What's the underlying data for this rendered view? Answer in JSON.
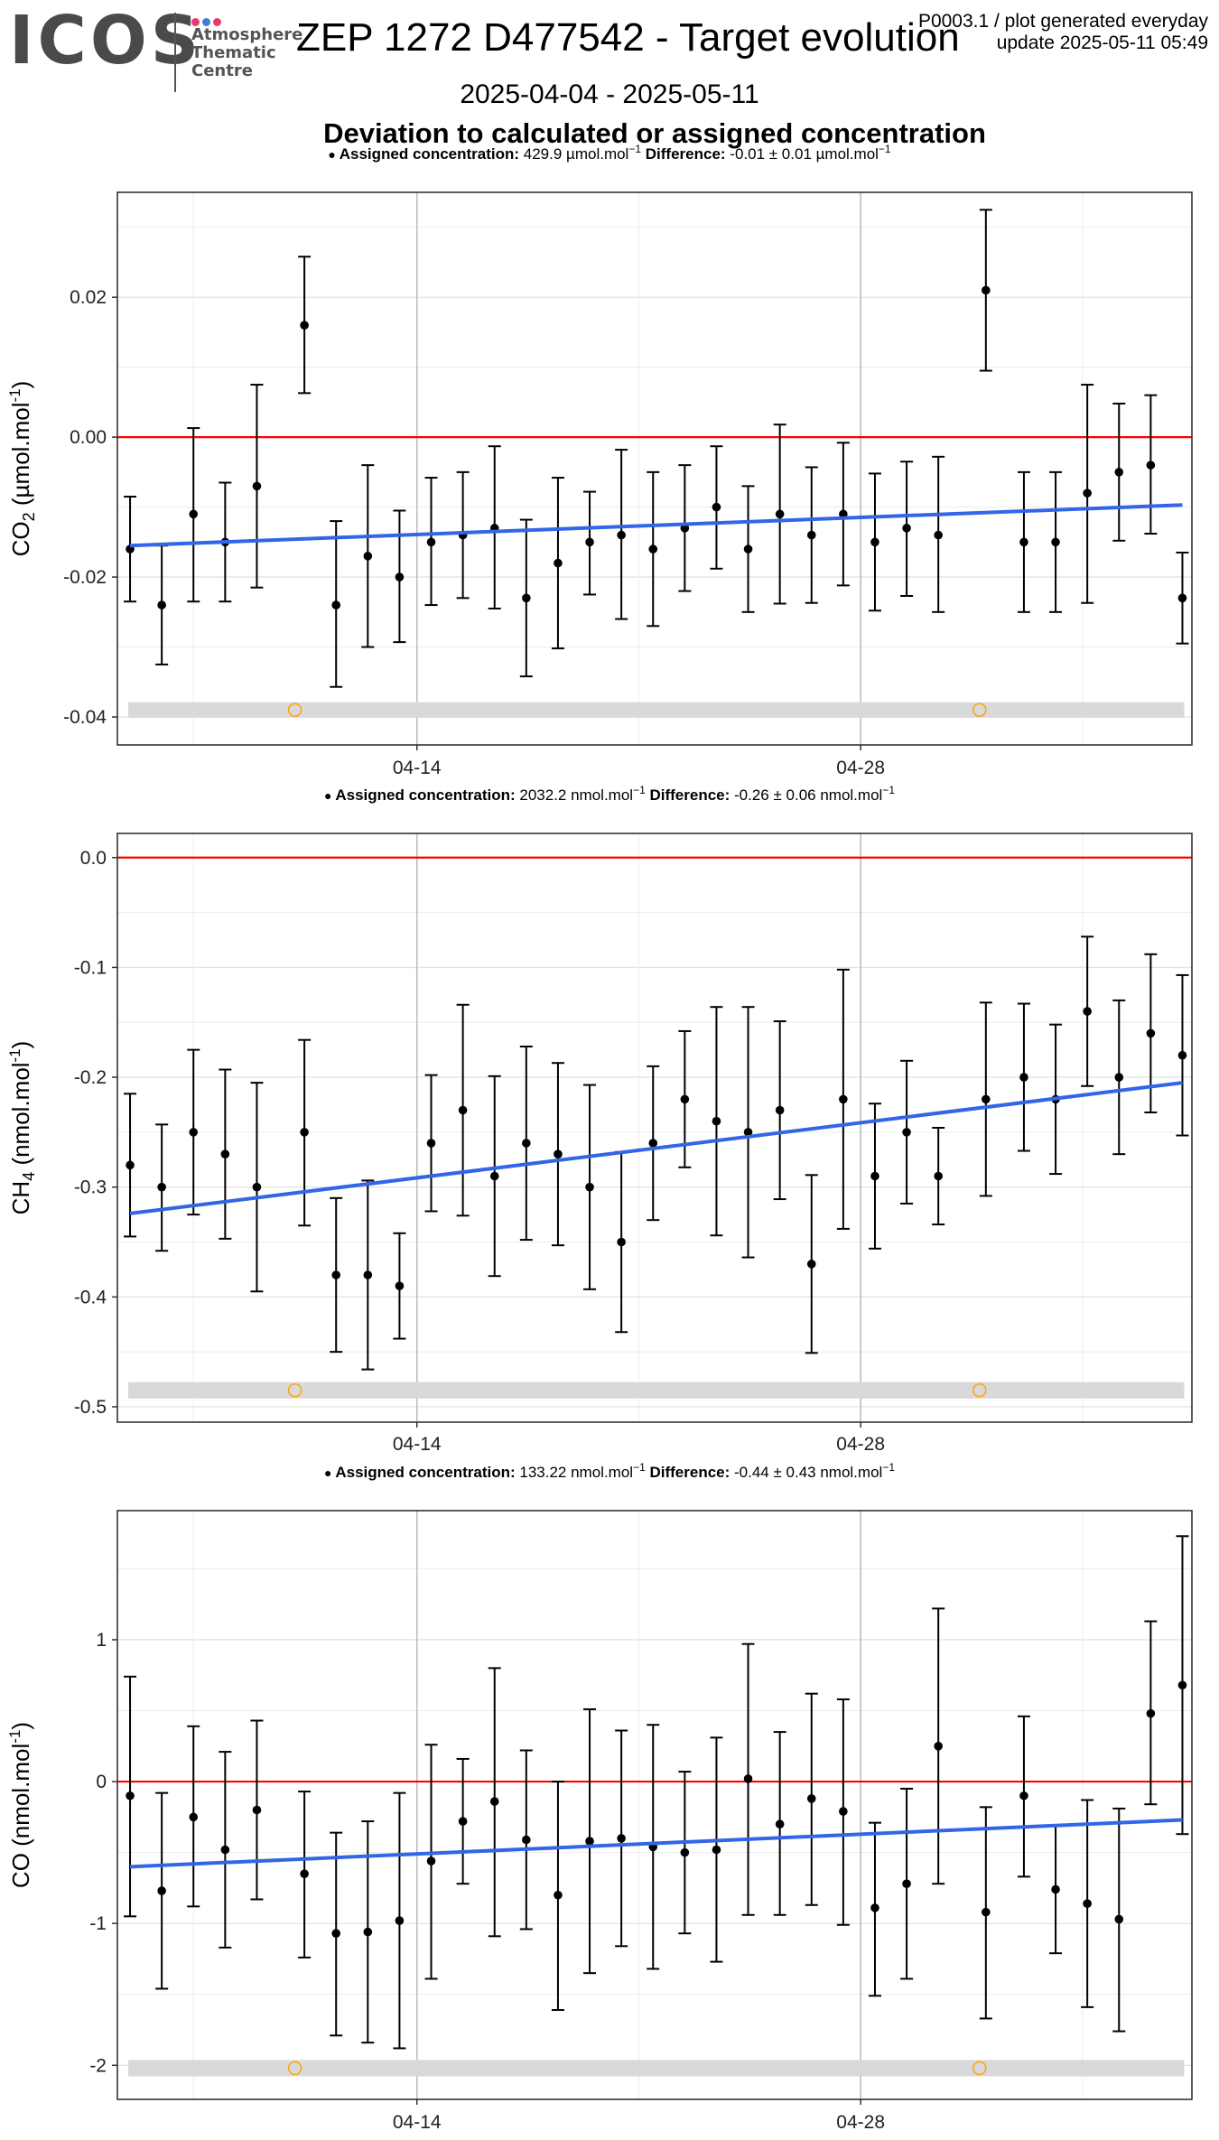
{
  "header": {
    "logo": {
      "wordmark": "ICOS",
      "line1": "Atmosphere",
      "line2": "Thematic",
      "line3": "Centre",
      "dot_colors": [
        "#e63a70",
        "#3a7fd5",
        "#e63a70"
      ]
    },
    "title": "ZEP 1272 D477542 - Target evolution",
    "meta_line1": "P0003.1 / plot generated everyday",
    "meta_line2": "update  2025-05-11 05:49",
    "date_range": "2025-04-04 - 2025-05-11",
    "subtitle": "Deviation to calculated or assigned concentration"
  },
  "colors": {
    "points": "#000000",
    "zero_line": "#ff0000",
    "trend": "#3366e6",
    "flag_band": "#d9d9d9",
    "flag_marker": "#ffa500",
    "grid_major": "#bdbdbd",
    "grid_minor": "#ececec"
  },
  "chart_data": [
    {
      "type": "scatter",
      "ylabel_species": "CO",
      "ylabel_sub": "2",
      "ylabel_unit": "(µmol.mol",
      "ylabel_exp": "-1",
      "caption": {
        "assigned_label": "Assigned concentration:",
        "assigned_value": "429.9 µmol.mol",
        "diff_label": "Difference:",
        "diff_value": "-0.01 ± 0.01 µmol.mol",
        "exp": "−1"
      },
      "x_ticks": [
        "04-14",
        "04-28"
      ],
      "y_ticks": [
        0.02,
        0.0,
        -0.02,
        -0.04
      ],
      "y_tick_labels": [
        "0.02",
        "0.00",
        "-0.02",
        "-0.04"
      ],
      "ylim": [
        -0.044,
        0.035
      ],
      "points": [
        {
          "x": 0,
          "y": -0.016,
          "lo": -0.0235,
          "hi": -0.0085
        },
        {
          "x": 1,
          "y": -0.024,
          "lo": -0.0325,
          "hi": -0.0155
        },
        {
          "x": 2,
          "y": -0.011,
          "lo": -0.0235,
          "hi": 0.0013
        },
        {
          "x": 3,
          "y": -0.015,
          "lo": -0.0235,
          "hi": -0.0065
        },
        {
          "x": 4,
          "y": -0.007,
          "lo": -0.0215,
          "hi": 0.0075
        },
        {
          "x": 5.5,
          "y": 0.016,
          "lo": 0.0063,
          "hi": 0.0258
        },
        {
          "x": 6.5,
          "y": -0.024,
          "lo": -0.0357,
          "hi": -0.012
        },
        {
          "x": 7.5,
          "y": -0.017,
          "lo": -0.03,
          "hi": -0.004
        },
        {
          "x": 8.5,
          "y": -0.02,
          "lo": -0.0293,
          "hi": -0.0105
        },
        {
          "x": 9.5,
          "y": -0.015,
          "lo": -0.024,
          "hi": -0.0058
        },
        {
          "x": 10.5,
          "y": -0.014,
          "lo": -0.023,
          "hi": -0.005
        },
        {
          "x": 11.5,
          "y": -0.013,
          "lo": -0.0245,
          "hi": -0.0013
        },
        {
          "x": 12.5,
          "y": -0.023,
          "lo": -0.0342,
          "hi": -0.0118
        },
        {
          "x": 13.5,
          "y": -0.018,
          "lo": -0.0302,
          "hi": -0.0058
        },
        {
          "x": 14.5,
          "y": -0.015,
          "lo": -0.0225,
          "hi": -0.0078
        },
        {
          "x": 15.5,
          "y": -0.014,
          "lo": -0.026,
          "hi": -0.0018
        },
        {
          "x": 16.5,
          "y": -0.016,
          "lo": -0.027,
          "hi": -0.005
        },
        {
          "x": 17.5,
          "y": -0.013,
          "lo": -0.022,
          "hi": -0.004
        },
        {
          "x": 18.5,
          "y": -0.01,
          "lo": -0.0188,
          "hi": -0.0013
        },
        {
          "x": 19.5,
          "y": -0.016,
          "lo": -0.025,
          "hi": -0.007
        },
        {
          "x": 20.5,
          "y": -0.011,
          "lo": -0.0238,
          "hi": 0.0018
        },
        {
          "x": 21.5,
          "y": -0.014,
          "lo": -0.0237,
          "hi": -0.0043
        },
        {
          "x": 22.5,
          "y": -0.011,
          "lo": -0.0212,
          "hi": -0.0008
        },
        {
          "x": 23.5,
          "y": -0.015,
          "lo": -0.0248,
          "hi": -0.0052
        },
        {
          "x": 24.5,
          "y": -0.013,
          "lo": -0.0227,
          "hi": -0.0035
        },
        {
          "x": 25.5,
          "y": -0.014,
          "lo": -0.025,
          "hi": -0.0028
        },
        {
          "x": 27,
          "y": 0.021,
          "lo": 0.0095,
          "hi": 0.0325
        },
        {
          "x": 28.2,
          "y": -0.015,
          "lo": -0.025,
          "hi": -0.005
        },
        {
          "x": 29.2,
          "y": -0.015,
          "lo": -0.025,
          "hi": -0.005
        },
        {
          "x": 30.2,
          "y": -0.008,
          "lo": -0.0237,
          "hi": 0.0075
        },
        {
          "x": 31.2,
          "y": -0.005,
          "lo": -0.0148,
          "hi": 0.0048
        },
        {
          "x": 32.2,
          "y": -0.004,
          "lo": -0.0138,
          "hi": 0.006
        },
        {
          "x": 33.2,
          "y": -0.023,
          "lo": -0.0295,
          "hi": -0.0165
        }
      ],
      "trend": {
        "y_start": -0.0155,
        "y_end": -0.0097
      },
      "flag_y": -0.039,
      "flag_markers_x": [
        5.2,
        26.8
      ]
    },
    {
      "type": "scatter",
      "ylabel_species": "CH",
      "ylabel_sub": "4",
      "ylabel_unit": "(nmol.mol",
      "ylabel_exp": "-1",
      "caption": {
        "assigned_label": "Assigned concentration:",
        "assigned_value": "2032.2 nmol.mol",
        "diff_label": "Difference:",
        "diff_value": "-0.26 ± 0.06 nmol.mol",
        "exp": "−1"
      },
      "x_ticks": [
        "04-14",
        "04-28"
      ],
      "y_ticks": [
        0.0,
        -0.1,
        -0.2,
        -0.3,
        -0.4,
        -0.5
      ],
      "y_tick_labels": [
        "0.0",
        "-0.1",
        "-0.2",
        "-0.3",
        "-0.4",
        "-0.5"
      ],
      "ylim": [
        -0.514,
        0.022
      ],
      "points": [
        {
          "x": 0,
          "y": -0.28,
          "lo": -0.345,
          "hi": -0.215
        },
        {
          "x": 1,
          "y": -0.3,
          "lo": -0.358,
          "hi": -0.243
        },
        {
          "x": 2,
          "y": -0.25,
          "lo": -0.325,
          "hi": -0.175
        },
        {
          "x": 3,
          "y": -0.27,
          "lo": -0.347,
          "hi": -0.193
        },
        {
          "x": 4,
          "y": -0.3,
          "lo": -0.395,
          "hi": -0.205
        },
        {
          "x": 5.5,
          "y": -0.25,
          "lo": -0.335,
          "hi": -0.166
        },
        {
          "x": 6.5,
          "y": -0.38,
          "lo": -0.45,
          "hi": -0.31
        },
        {
          "x": 7.5,
          "y": -0.38,
          "lo": -0.466,
          "hi": -0.294
        },
        {
          "x": 8.5,
          "y": -0.39,
          "lo": -0.438,
          "hi": -0.342
        },
        {
          "x": 9.5,
          "y": -0.26,
          "lo": -0.322,
          "hi": -0.198
        },
        {
          "x": 10.5,
          "y": -0.23,
          "lo": -0.326,
          "hi": -0.134
        },
        {
          "x": 11.5,
          "y": -0.29,
          "lo": -0.381,
          "hi": -0.199
        },
        {
          "x": 12.5,
          "y": -0.26,
          "lo": -0.348,
          "hi": -0.172
        },
        {
          "x": 13.5,
          "y": -0.27,
          "lo": -0.353,
          "hi": -0.187
        },
        {
          "x": 14.5,
          "y": -0.3,
          "lo": -0.393,
          "hi": -0.207
        },
        {
          "x": 15.5,
          "y": -0.35,
          "lo": -0.432,
          "hi": -0.268
        },
        {
          "x": 16.5,
          "y": -0.26,
          "lo": -0.33,
          "hi": -0.19
        },
        {
          "x": 17.5,
          "y": -0.22,
          "lo": -0.282,
          "hi": -0.158
        },
        {
          "x": 18.5,
          "y": -0.24,
          "lo": -0.344,
          "hi": -0.136
        },
        {
          "x": 19.5,
          "y": -0.25,
          "lo": -0.364,
          "hi": -0.136
        },
        {
          "x": 20.5,
          "y": -0.23,
          "lo": -0.311,
          "hi": -0.149
        },
        {
          "x": 21.5,
          "y": -0.37,
          "lo": -0.451,
          "hi": -0.289
        },
        {
          "x": 22.5,
          "y": -0.22,
          "lo": -0.338,
          "hi": -0.102
        },
        {
          "x": 23.5,
          "y": -0.29,
          "lo": -0.356,
          "hi": -0.224
        },
        {
          "x": 24.5,
          "y": -0.25,
          "lo": -0.315,
          "hi": -0.185
        },
        {
          "x": 25.5,
          "y": -0.29,
          "lo": -0.334,
          "hi": -0.246
        },
        {
          "x": 27,
          "y": -0.22,
          "lo": -0.308,
          "hi": -0.132
        },
        {
          "x": 28.2,
          "y": -0.2,
          "lo": -0.267,
          "hi": -0.133
        },
        {
          "x": 29.2,
          "y": -0.22,
          "lo": -0.288,
          "hi": -0.152
        },
        {
          "x": 30.2,
          "y": -0.14,
          "lo": -0.208,
          "hi": -0.072
        },
        {
          "x": 31.2,
          "y": -0.2,
          "lo": -0.27,
          "hi": -0.13
        },
        {
          "x": 32.2,
          "y": -0.16,
          "lo": -0.232,
          "hi": -0.088
        },
        {
          "x": 33.2,
          "y": -0.18,
          "lo": -0.253,
          "hi": -0.107
        }
      ],
      "trend": {
        "y_start": -0.324,
        "y_end": -0.205
      },
      "flag_y": -0.485,
      "flag_markers_x": [
        5.2,
        26.8
      ]
    },
    {
      "type": "scatter",
      "ylabel_species": "CO",
      "ylabel_sub": "",
      "ylabel_unit": "(nmol.mol",
      "ylabel_exp": "-1",
      "caption": {
        "assigned_label": "Assigned concentration:",
        "assigned_value": "133.22 nmol.mol",
        "diff_label": "Difference:",
        "diff_value": "-0.44 ± 0.43 nmol.mol",
        "exp": "−1"
      },
      "x_ticks": [
        "04-14",
        "04-28"
      ],
      "y_ticks": [
        1,
        0,
        -1,
        -2
      ],
      "y_tick_labels": [
        "1",
        "0",
        "-1",
        "-2"
      ],
      "ylim": [
        -2.24,
        1.91
      ],
      "points": [
        {
          "x": 0,
          "y": -0.1,
          "lo": -0.95,
          "hi": 0.74
        },
        {
          "x": 1,
          "y": -0.77,
          "lo": -1.46,
          "hi": -0.08
        },
        {
          "x": 2,
          "y": -0.25,
          "lo": -0.88,
          "hi": 0.39
        },
        {
          "x": 3,
          "y": -0.48,
          "lo": -1.17,
          "hi": 0.21
        },
        {
          "x": 4,
          "y": -0.2,
          "lo": -0.83,
          "hi": 0.43
        },
        {
          "x": 5.5,
          "y": -0.65,
          "lo": -1.24,
          "hi": -0.07
        },
        {
          "x": 6.5,
          "y": -1.07,
          "lo": -1.79,
          "hi": -0.36
        },
        {
          "x": 7.5,
          "y": -1.06,
          "lo": -1.84,
          "hi": -0.28
        },
        {
          "x": 8.5,
          "y": -0.98,
          "lo": -1.88,
          "hi": -0.08
        },
        {
          "x": 9.5,
          "y": -0.56,
          "lo": -1.39,
          "hi": 0.26
        },
        {
          "x": 10.5,
          "y": -0.28,
          "lo": -0.72,
          "hi": 0.16
        },
        {
          "x": 11.5,
          "y": -0.14,
          "lo": -1.09,
          "hi": 0.8
        },
        {
          "x": 12.5,
          "y": -0.41,
          "lo": -1.04,
          "hi": 0.22
        },
        {
          "x": 13.5,
          "y": -0.8,
          "lo": -1.61,
          "hi": 0.0
        },
        {
          "x": 14.5,
          "y": -0.42,
          "lo": -1.35,
          "hi": 0.51
        },
        {
          "x": 15.5,
          "y": -0.4,
          "lo": -1.16,
          "hi": 0.36
        },
        {
          "x": 16.5,
          "y": -0.46,
          "lo": -1.32,
          "hi": 0.4
        },
        {
          "x": 17.5,
          "y": -0.5,
          "lo": -1.07,
          "hi": 0.07
        },
        {
          "x": 18.5,
          "y": -0.48,
          "lo": -1.27,
          "hi": 0.31
        },
        {
          "x": 19.5,
          "y": 0.02,
          "lo": -0.94,
          "hi": 0.97
        },
        {
          "x": 20.5,
          "y": -0.3,
          "lo": -0.94,
          "hi": 0.35
        },
        {
          "x": 21.5,
          "y": -0.12,
          "lo": -0.87,
          "hi": 0.62
        },
        {
          "x": 22.5,
          "y": -0.21,
          "lo": -1.01,
          "hi": 0.58
        },
        {
          "x": 23.5,
          "y": -0.89,
          "lo": -1.51,
          "hi": -0.29
        },
        {
          "x": 24.5,
          "y": -0.72,
          "lo": -1.39,
          "hi": -0.05
        },
        {
          "x": 25.5,
          "y": 0.25,
          "lo": -0.72,
          "hi": 1.22
        },
        {
          "x": 27,
          "y": -0.92,
          "lo": -1.67,
          "hi": -0.18
        },
        {
          "x": 28.2,
          "y": -0.1,
          "lo": -0.67,
          "hi": 0.46
        },
        {
          "x": 29.2,
          "y": -0.76,
          "lo": -1.21,
          "hi": -0.31
        },
        {
          "x": 30.2,
          "y": -0.86,
          "lo": -1.59,
          "hi": -0.13
        },
        {
          "x": 31.2,
          "y": -0.97,
          "lo": -1.76,
          "hi": -0.19
        },
        {
          "x": 32.2,
          "y": 0.48,
          "lo": -0.16,
          "hi": 1.13
        },
        {
          "x": 33.2,
          "y": 0.68,
          "lo": -0.37,
          "hi": 1.73
        }
      ],
      "trend": {
        "y_start": -0.6,
        "y_end": -0.27
      },
      "flag_y": -2.02,
      "flag_markers_x": [
        5.2,
        26.8
      ]
    }
  ]
}
